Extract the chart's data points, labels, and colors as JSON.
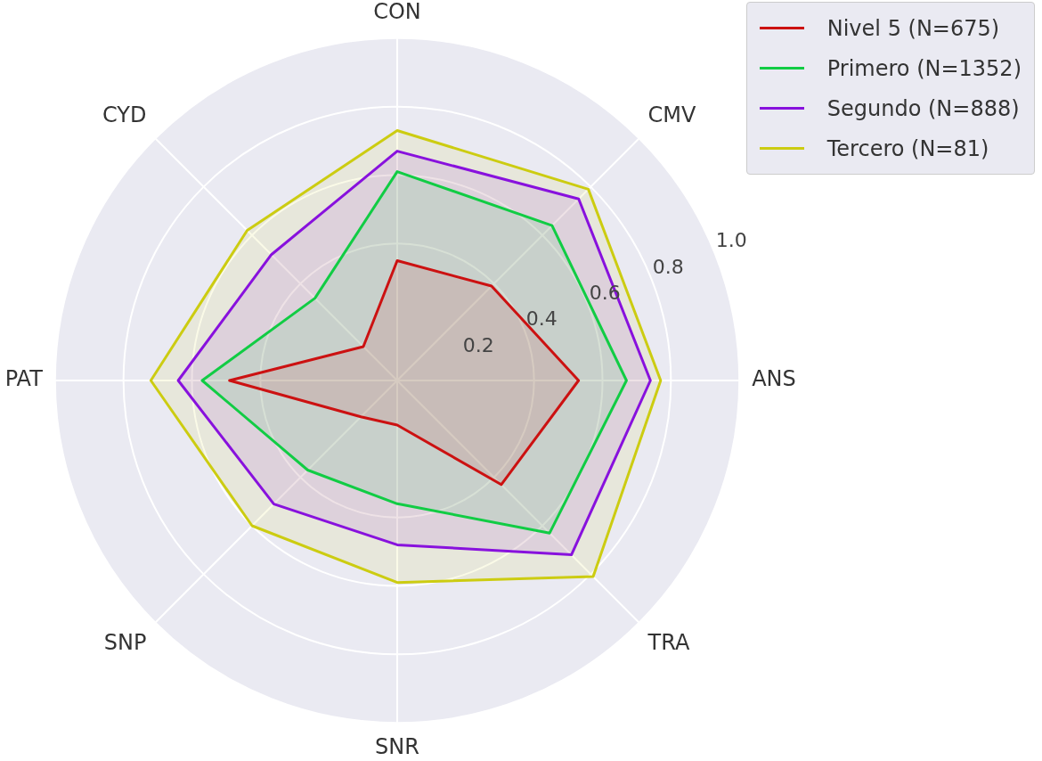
{
  "chart_data": {
    "type": "radar",
    "categories": [
      "CON",
      "CMV",
      "ANS",
      "TRA",
      "SNR",
      "SNP",
      "PAT",
      "CYD"
    ],
    "ylim": [
      0,
      1
    ],
    "yticks": [
      0.2,
      0.4,
      0.6,
      0.8,
      {
        "value": 1,
        "label": "1.0"
      }
    ],
    "grid": true,
    "legend": "top right",
    "marker": "none",
    "series": [
      {
        "name": "Nivel 5 (N=675)",
        "color": "#cc1111",
        "values": [
          0.35,
          0.39,
          0.53,
          0.43,
          0.13,
          0.15,
          0.49,
          0.14
        ]
      },
      {
        "name": "Primero (N=1352)",
        "color": "#11cc44",
        "values": [
          0.61,
          0.64,
          0.67,
          0.63,
          0.36,
          0.37,
          0.57,
          0.34
        ]
      },
      {
        "name": "Segundo (N=888)",
        "color": "#8811dd",
        "values": [
          0.67,
          0.75,
          0.74,
          0.72,
          0.48,
          0.51,
          0.64,
          0.52
        ]
      },
      {
        "name": "Tercero (N=81)",
        "color": "#cccc11",
        "values": [
          0.73,
          0.79,
          0.77,
          0.81,
          0.59,
          0.6,
          0.72,
          0.62
        ]
      }
    ]
  }
}
